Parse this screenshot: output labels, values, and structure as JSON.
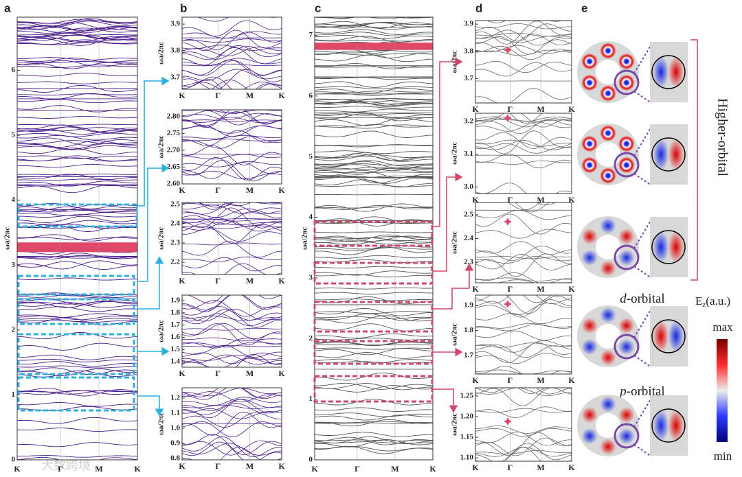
{
  "panels": [
    {
      "label": "a",
      "y_label": "ωa/2πc",
      "k_labels": [
        "K",
        "Γ",
        "M",
        "K"
      ],
      "ylim": [
        0,
        6.82
      ],
      "yticks": [
        0,
        1,
        2,
        3,
        4,
        5,
        6
      ]
    },
    {
      "label": "b",
      "plots": [
        {
          "y_label": "ωa/2πc",
          "k_labels": [
            "K",
            "Γ",
            "M",
            "K"
          ],
          "ylim": [
            3.656,
            3.926
          ],
          "yticks": [
            3.7,
            3.8,
            3.9
          ]
        },
        {
          "y_label": "ωa/2πc",
          "k_labels": [
            "K",
            "Γ",
            "M",
            "K"
          ],
          "ylim": [
            2.6,
            2.82
          ],
          "yticks": [
            {
              "value": 2.6,
              "label": "2.60"
            },
            2.65,
            {
              "value": 2.7,
              "label": "2.70"
            },
            2.75,
            {
              "value": 2.8,
              "label": "2.80"
            }
          ]
        },
        {
          "y_label": "ωa/2πc",
          "k_labels": [
            "K",
            "Γ",
            "M",
            "K"
          ],
          "ylim": [
            2.136,
            2.51
          ],
          "yticks": [
            2.2,
            2.3,
            2.4,
            2.5
          ]
        },
        {
          "y_label": "ωa/2πc",
          "k_labels": [
            "K",
            "Γ",
            "M",
            "K"
          ],
          "ylim": [
            1.355,
            1.945
          ],
          "yticks": [
            1.4,
            1.5,
            1.6,
            1.7,
            1.8,
            1.9
          ]
        },
        {
          "y_label": "ωa/2πc",
          "k_labels": [
            "K",
            "Γ",
            "M",
            "K"
          ],
          "ylim": [
            0.79,
            1.268
          ],
          "yticks": [
            0.8,
            0.9,
            {
              "value": 1.0,
              "label": "1.0"
            },
            1.1,
            1.2
          ]
        }
      ]
    },
    {
      "label": "c",
      "y_label": "ωa/2πc",
      "k_labels": [
        "K",
        "Γ",
        "M",
        "K"
      ],
      "ylim": [
        0,
        7.3
      ],
      "yticks": [
        0,
        1,
        2,
        3,
        4,
        5,
        6,
        7
      ]
    },
    {
      "label": "d",
      "plots": [
        {
          "y_label": "ωa/2πc",
          "k_labels": [
            "K",
            "Γ",
            "M",
            "K"
          ],
          "ylim": [
            3.61,
            3.913
          ],
          "yticks": [
            3.7,
            3.8,
            3.9
          ]
        },
        {
          "y_label": "ωa/2πc",
          "k_labels": [
            "K",
            "Γ",
            "M",
            "K"
          ],
          "ylim": [
            2.98,
            3.225
          ],
          "yticks": [
            {
              "value": 3.0,
              "label": "3.0"
            },
            3.1,
            3.2
          ]
        },
        {
          "y_label": "ωa/2πc",
          "k_labels": [
            "K",
            "Γ",
            "M",
            "K"
          ],
          "ylim": [
            2.213,
            2.552
          ],
          "yticks": [
            2.3,
            2.4,
            2.5
          ]
        },
        {
          "y_label": "ωa/2πc",
          "k_labels": [
            "K",
            "Γ",
            "M",
            "K"
          ],
          "ylim": [
            1.626,
            1.941
          ],
          "yticks": [
            1.7,
            1.8,
            1.9
          ]
        },
        {
          "y_label": "ωa/2πc",
          "k_labels": [
            "K",
            "Γ",
            "M",
            "K"
          ],
          "ylim": [
            1.092,
            1.27
          ],
          "yticks": [
            {
              "value": 1.1,
              "label": "1.10"
            },
            1.15,
            {
              "value": 1.2,
              "label": "1.20"
            },
            1.25
          ]
        }
      ]
    },
    {
      "label": "e",
      "higher": "Higher-orbital",
      "d_letter": "d",
      "p_letter": "p",
      "orbital_suffix": "-orbital",
      "field_symbol": "E",
      "field_sub": "z",
      "field_unit": "(a.u.)",
      "max": "max",
      "min": "min"
    }
  ],
  "watermark": "大数跨境"
}
